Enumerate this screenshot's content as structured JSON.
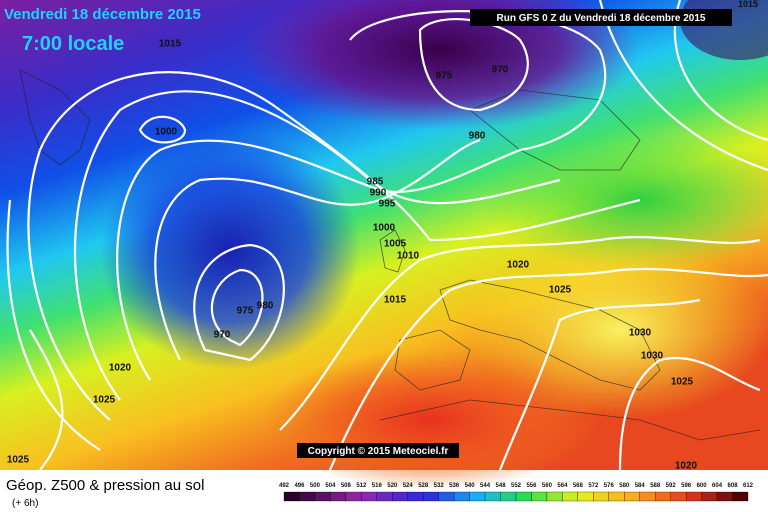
{
  "header": {
    "date": "Vendredi 18 décembre 2015",
    "time": "7:00 locale",
    "run": "Run GFS 0 Z du Vendredi 18 décembre 2015",
    "corner": "1015"
  },
  "copyright": "Copyright © 2015 Meteociel.fr",
  "footer": {
    "title": "Géop. Z500 & pression au sol",
    "step": "(+ 6h)"
  },
  "isobar_labels": [
    "1015",
    "975",
    "970",
    "1000",
    "980",
    "985",
    "990",
    "995",
    "1000",
    "1005",
    "1010",
    "1020",
    "1025",
    "1015",
    "980",
    "975",
    "970",
    "1030",
    "1030",
    "1025",
    "1020",
    "1025",
    "1025",
    "1020"
  ],
  "scale": {
    "labels": [
      492,
      496,
      500,
      504,
      508,
      512,
      516,
      520,
      524,
      528,
      532,
      536,
      540,
      544,
      548,
      552,
      556,
      560,
      564,
      568,
      572,
      576,
      580,
      584,
      588,
      592,
      596,
      600,
      604,
      608,
      612
    ]
  }
}
